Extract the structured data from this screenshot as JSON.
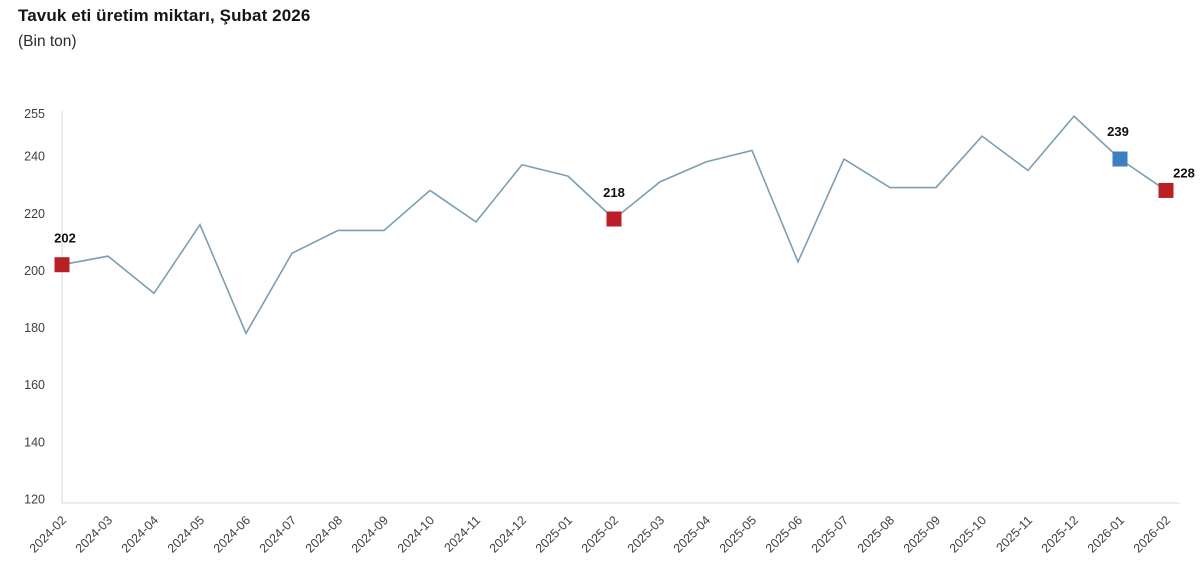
{
  "title": "Tavuk eti üretim miktarı, Şubat 2026",
  "subtitle": "(Bin ton)",
  "colors": {
    "line": "#7d9fb2",
    "marker_red": "#b91f24",
    "marker_blue": "#3b80c2",
    "axis": "#d9d9d9",
    "tick_text": "#404040",
    "annotation_text": "#101010"
  },
  "chart_data": {
    "type": "line",
    "title": "Tavuk eti üretim miktarı, Şubat 2026",
    "subtitle": "(Bin ton)",
    "xlabel": "",
    "ylabel": "Bin ton",
    "ylim": [
      120,
      255
    ],
    "yticks": [
      120,
      140,
      160,
      180,
      200,
      220,
      240,
      255
    ],
    "grid": false,
    "legend": "none",
    "categories": [
      "2024-02",
      "2024-03",
      "2024-04",
      "2024-05",
      "2024-06",
      "2024-07",
      "2024-08",
      "2024-09",
      "2024-10",
      "2024-11",
      "2024-12",
      "2025-01",
      "2025-02",
      "2025-03",
      "2025-04",
      "2025-05",
      "2025-06",
      "2025-07",
      "2025-08",
      "2025-09",
      "2025-10",
      "2025-11",
      "2025-12",
      "2026-01",
      "2026-02"
    ],
    "values": [
      202,
      205,
      192,
      216,
      178,
      206,
      214,
      214,
      228,
      217,
      237,
      233,
      218,
      231,
      238,
      242,
      203,
      239,
      229,
      229,
      247,
      235,
      254,
      239,
      228
    ],
    "annotated_points": [
      {
        "index": 0,
        "category": "2024-02",
        "value": 202,
        "label": "202",
        "marker": "red-square"
      },
      {
        "index": 12,
        "category": "2025-02",
        "value": 218,
        "label": "218",
        "marker": "red-square"
      },
      {
        "index": 23,
        "category": "2026-01",
        "value": 239,
        "label": "239",
        "marker": "blue-square"
      },
      {
        "index": 24,
        "category": "2026-02",
        "value": 228,
        "label": "228",
        "marker": "red-square"
      }
    ]
  }
}
